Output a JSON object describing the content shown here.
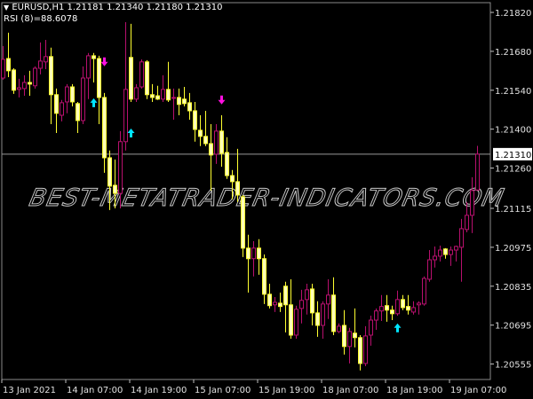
{
  "header": {
    "symbol_line": "EURUSD,H1  1.21181 1.21340 1.21180 1.21310",
    "indicator_line": "RSI (8)=88.6078"
  },
  "watermark": "BEST-METATRADER-INDICATORS.COM",
  "colors": {
    "background": "#000000",
    "bull_candle": "#b8106e",
    "bear_candle": "#ffff30",
    "bear_fill": "#ffffb8",
    "buy_arrow": "#00e5ff",
    "sell_arrow": "#ff10e0",
    "axis": "#c0c0c0",
    "price_line": "#9a9a9a"
  },
  "chart_data": {
    "type": "candlestick",
    "symbol": "EURUSD",
    "timeframe": "H1",
    "ylim": [
      1.20525,
      1.21905
    ],
    "grid": false,
    "y_ticks": [
      "1.21820",
      "1.21680",
      "1.21540",
      "1.21400",
      "1.21260",
      "1.21115",
      "1.20975",
      "1.20835",
      "1.20695",
      "1.20555"
    ],
    "current_price": "1.21310",
    "x_ticks": [
      {
        "index": 0,
        "label": "13 Jan 2021"
      },
      {
        "index": 12,
        "label": "14 Jan 07:00"
      },
      {
        "index": 24,
        "label": "14 Jan 19:00"
      },
      {
        "index": 36,
        "label": "15 Jan 07:00"
      },
      {
        "index": 48,
        "label": "15 Jan 19:00"
      },
      {
        "index": 60,
        "label": "18 Jan 07:00"
      },
      {
        "index": 72,
        "label": "18 Jan 19:00"
      },
      {
        "index": 84,
        "label": "19 Jan 07:00"
      }
    ],
    "ohlc_columns": [
      "open",
      "high",
      "low",
      "close"
    ],
    "candles": [
      [
        1.21584,
        1.21699,
        1.21578,
        1.21651
      ],
      [
        1.21654,
        1.21747,
        1.21587,
        1.2161
      ],
      [
        1.21613,
        1.21619,
        1.21527,
        1.2154
      ],
      [
        1.21543,
        1.21581,
        1.21514,
        1.21549
      ],
      [
        1.21546,
        1.21594,
        1.2152,
        1.21568
      ],
      [
        1.21568,
        1.2161,
        1.2152,
        1.21562
      ],
      [
        1.21556,
        1.21626,
        1.21546,
        1.21619
      ],
      [
        1.21619,
        1.21712,
        1.21597,
        1.21645
      ],
      [
        1.21642,
        1.21721,
        1.21616,
        1.21661
      ],
      [
        1.21661,
        1.21693,
        1.21418,
        1.21524
      ],
      [
        1.21524,
        1.21546,
        1.21386,
        1.21457
      ],
      [
        1.2145,
        1.21505,
        1.21428,
        1.21495
      ],
      [
        1.21498,
        1.21562,
        1.21457,
        1.21552
      ],
      [
        1.21552,
        1.21562,
        1.21482,
        1.21498
      ],
      [
        1.21492,
        1.21498,
        1.21386,
        1.21431
      ],
      [
        1.21431,
        1.21626,
        1.21418,
        1.21584
      ],
      [
        1.21584,
        1.21674,
        1.21508,
        1.21664
      ],
      [
        1.21664,
        1.21674,
        1.21568,
        1.21654
      ],
      [
        1.21654,
        1.21664,
        1.21418,
        1.21514
      ],
      [
        1.21514,
        1.2153,
        1.21243,
        1.21297
      ],
      [
        1.21297,
        1.21323,
        1.21109,
        1.21195
      ],
      [
        1.21198,
        1.21291,
        1.21115,
        1.21169
      ],
      [
        1.21169,
        1.21393,
        1.21115,
        1.21355
      ],
      [
        1.21355,
        1.21785,
        1.21323,
        1.21543
      ],
      [
        1.21658,
        1.21779,
        1.21498,
        1.21508
      ],
      [
        1.21508,
        1.21562,
        1.21498,
        1.21549
      ],
      [
        1.21552,
        1.21651,
        1.21546,
        1.21642
      ],
      [
        1.21642,
        1.21648,
        1.21508,
        1.21524
      ],
      [
        1.21524,
        1.21562,
        1.21498,
        1.21514
      ],
      [
        1.2152,
        1.21556,
        1.21505,
        1.21508
      ],
      [
        1.21508,
        1.21594,
        1.21498,
        1.21543
      ],
      [
        1.21543,
        1.21642,
        1.21498,
        1.21505
      ],
      [
        1.21511,
        1.21546,
        1.21434,
        1.21514
      ],
      [
        1.21514,
        1.21546,
        1.2145,
        1.21489
      ],
      [
        1.21508,
        1.21552,
        1.21482,
        1.21492
      ],
      [
        1.21495,
        1.2153,
        1.21434,
        1.21466
      ],
      [
        1.21466,
        1.21498,
        1.21355,
        1.21399
      ],
      [
        1.21396,
        1.2145,
        1.21339,
        1.21374
      ],
      [
        1.21374,
        1.21466,
        1.21339,
        1.21348
      ],
      [
        1.21348,
        1.21418,
        1.21179,
        1.21307
      ],
      [
        1.2131,
        1.21418,
        1.21275,
        1.21393
      ],
      [
        1.21393,
        1.2145,
        1.21265,
        1.21313
      ],
      [
        1.21316,
        1.21371,
        1.21221,
        1.21233
      ],
      [
        1.21233,
        1.21253,
        1.21147,
        1.21211
      ],
      [
        1.21211,
        1.21329,
        1.21138,
        1.21163
      ],
      [
        1.21157,
        1.21163,
        1.2094,
        1.20972
      ],
      [
        1.20972,
        1.2102,
        1.20812,
        1.20934
      ],
      [
        1.20934,
        1.20997,
        1.2087,
        1.20972
      ],
      [
        1.20972,
        1.21004,
        1.20876,
        1.20934
      ],
      [
        1.20934,
        1.20949,
        1.20771,
        1.20806
      ],
      [
        1.20806,
        1.20844,
        1.20755,
        1.20765
      ],
      [
        1.20768,
        1.20796,
        1.20742,
        1.20777
      ],
      [
        1.20774,
        1.20812,
        1.20742,
        1.20762
      ],
      [
        1.20835,
        1.20851,
        1.20669,
        1.20768
      ],
      [
        1.20768,
        1.2086,
        1.20646,
        1.20659
      ],
      [
        1.20659,
        1.20765,
        1.20646,
        1.20752
      ],
      [
        1.20755,
        1.20822,
        1.20701,
        1.20784
      ],
      [
        1.20787,
        1.20844,
        1.20733,
        1.20822
      ],
      [
        1.20825,
        1.20844,
        1.20694,
        1.20739
      ],
      [
        1.20739,
        1.20781,
        1.20653,
        1.20694
      ],
      [
        1.20694,
        1.20781,
        1.20646,
        1.20771
      ],
      [
        1.20771,
        1.2086,
        1.20717,
        1.20803
      ],
      [
        1.20803,
        1.20867,
        1.20659,
        1.20672
      ],
      [
        1.20672,
        1.20701,
        1.20666,
        1.20691
      ],
      [
        1.20694,
        1.20749,
        1.20589,
        1.20618
      ],
      [
        1.20618,
        1.20685,
        1.20557,
        1.20672
      ],
      [
        1.20666,
        1.20755,
        1.20615,
        1.2065
      ],
      [
        1.2065,
        1.20659,
        1.20532,
        1.20557
      ],
      [
        1.20557,
        1.20691,
        1.20547,
        1.20656
      ],
      [
        1.20659,
        1.20729,
        1.20621,
        1.20713
      ],
      [
        1.20713,
        1.20755,
        1.20678,
        1.20746
      ],
      [
        1.20746,
        1.20803,
        1.2071,
        1.20762
      ],
      [
        1.20765,
        1.20803,
        1.20707,
        1.20749
      ],
      [
        1.20749,
        1.20765,
        1.20713,
        1.20736
      ],
      [
        1.20736,
        1.20819,
        1.20729,
        1.20787
      ],
      [
        1.20787,
        1.20803,
        1.20749,
        1.20758
      ],
      [
        1.20762,
        1.20803,
        1.20733,
        1.20749
      ],
      [
        1.20742,
        1.20781,
        1.20733,
        1.20758
      ],
      [
        1.20768,
        1.20781,
        1.20733,
        1.20774
      ],
      [
        1.20771,
        1.2087,
        1.20765,
        1.20863
      ],
      [
        1.2086,
        1.20965,
        1.20851,
        1.2093
      ],
      [
        1.2093,
        1.20978,
        1.20902,
        1.20943
      ],
      [
        1.20943,
        1.20981,
        1.20924,
        1.20965
      ],
      [
        1.20969,
        1.20972,
        1.20934,
        1.20949
      ],
      [
        1.20949,
        1.20978,
        1.20908,
        1.20965
      ],
      [
        1.20965,
        1.20981,
        1.20924,
        1.20978
      ],
      [
        1.20975,
        1.21077,
        1.20851,
        1.21042
      ],
      [
        1.21039,
        1.21138,
        1.21029,
        1.2109
      ],
      [
        1.2109,
        1.21227,
        1.21026,
        1.21179
      ],
      [
        1.21181,
        1.2134,
        1.2118,
        1.2131
      ]
    ],
    "signals": [
      {
        "index": 17,
        "price": 1.21495,
        "direction": "up"
      },
      {
        "index": 24,
        "price": 1.21386,
        "direction": "up"
      },
      {
        "index": 74,
        "price": 1.20685,
        "direction": "up"
      },
      {
        "index": 19,
        "price": 1.21642,
        "direction": "down"
      },
      {
        "index": 41,
        "price": 1.21505,
        "direction": "down"
      }
    ]
  }
}
